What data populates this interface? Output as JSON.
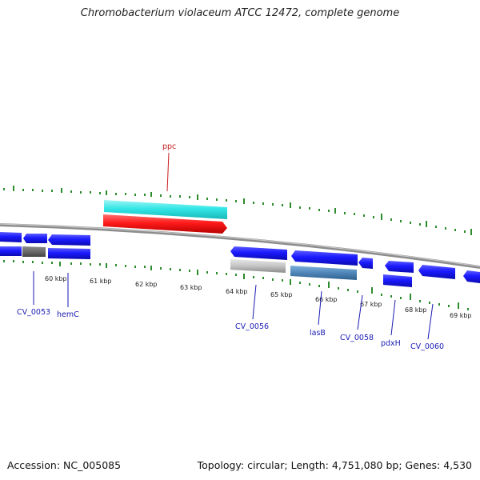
{
  "title": "Chromobacterium violaceum ATCC 12472, complete genome",
  "accession": "Accession: NC_005085",
  "summary": "Topology: circular; Length: 4,751,080 bp; Genes: 4,530",
  "ticks": [
    "60 kbp",
    "61 kbp",
    "62 kbp",
    "63 kbp",
    "64 kbp",
    "65 kbp",
    "66 kbp",
    "67 kbp",
    "68 kbp",
    "69 kbp"
  ],
  "genes": {
    "ppc": "ppc",
    "cv0053": "CV_0053",
    "hemC": "hemC",
    "cv0056": "CV_0056",
    "lasB": "lasB",
    "cv0058": "CV_0058",
    "pdxH": "pdxH",
    "cv0060": "CV_0060"
  },
  "colors": {
    "backbone": "#8c8c8c",
    "tick": "#2e8b2e",
    "gene_blue": "#1a1aff",
    "cyan": "#33e6e6",
    "red": "#ff1a1a",
    "gray": "#a8a8a8",
    "steel": "#4f86b8",
    "label_blue": "#1a1ab4",
    "label_red": "#c81e1e"
  }
}
